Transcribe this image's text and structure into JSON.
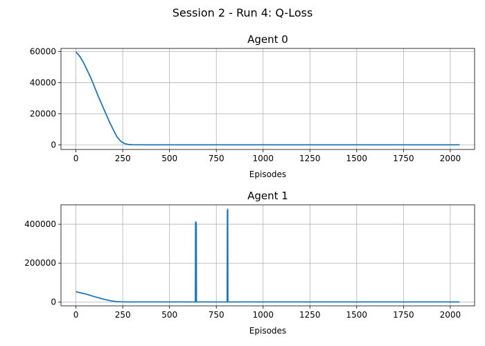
{
  "figure": {
    "suptitle": "Session 2 - Run 4: Q-Loss"
  },
  "chart_data": [
    {
      "type": "line",
      "title": "Agent 0",
      "xlabel": "Episodes",
      "ylabel": "",
      "xlim": [
        -80,
        2130
      ],
      "ylim": [
        -3000,
        62000
      ],
      "xticks": [
        0,
        250,
        500,
        750,
        1000,
        1250,
        1500,
        1750,
        2000
      ],
      "xtick_labels": [
        "0",
        "250",
        "500",
        "750",
        "1000",
        "1250",
        "1500",
        "1750",
        "2000"
      ],
      "yticks": [
        0,
        20000,
        40000,
        60000
      ],
      "ytick_labels": [
        "0",
        "20000",
        "40000",
        "60000"
      ],
      "grid": true,
      "line_color": "#1f77b4",
      "series": [
        {
          "x": [
            0,
            20,
            40,
            60,
            80,
            100,
            120,
            140,
            160,
            180,
            200,
            220,
            240,
            260,
            280,
            300,
            350,
            400,
            500,
            750,
            1000,
            1250,
            1500,
            1750,
            2000,
            2050
          ],
          "values": [
            59800,
            57000,
            53000,
            48000,
            43000,
            37000,
            31000,
            25500,
            20000,
            14500,
            9500,
            5000,
            2200,
            800,
            200,
            50,
            10,
            5,
            5,
            5,
            5,
            5,
            5,
            5,
            5,
            5
          ]
        }
      ]
    },
    {
      "type": "line",
      "title": "Agent 1",
      "xlabel": "Episodes",
      "ylabel": "",
      "xlim": [
        -80,
        2130
      ],
      "ylim": [
        -20000,
        500000
      ],
      "xticks": [
        0,
        250,
        500,
        750,
        1000,
        1250,
        1500,
        1750,
        2000
      ],
      "xtick_labels": [
        "0",
        "250",
        "500",
        "750",
        "1000",
        "1250",
        "1500",
        "1750",
        "2000"
      ],
      "yticks": [
        0,
        200000,
        400000
      ],
      "ytick_labels": [
        "0",
        "200000",
        "400000"
      ],
      "grid": true,
      "line_color": "#1f77b4",
      "series": [
        {
          "x": [
            0,
            30,
            60,
            90,
            120,
            150,
            180,
            210,
            240,
            270,
            300,
            400,
            500,
            638,
            639,
            640,
            641,
            642,
            643,
            644,
            645,
            808,
            809,
            810,
            811,
            812,
            813,
            900,
            1000,
            1250,
            1500,
            1750,
            2000,
            2050
          ],
          "values": [
            53000,
            46000,
            39000,
            30000,
            22000,
            14000,
            7000,
            2500,
            800,
            200,
            80,
            50,
            30,
            30,
            410000,
            5000,
            412000,
            3000,
            405000,
            30,
            30,
            30,
            470000,
            5000,
            478000,
            30,
            30,
            30,
            30,
            30,
            30,
            30,
            30,
            30
          ]
        }
      ]
    }
  ]
}
